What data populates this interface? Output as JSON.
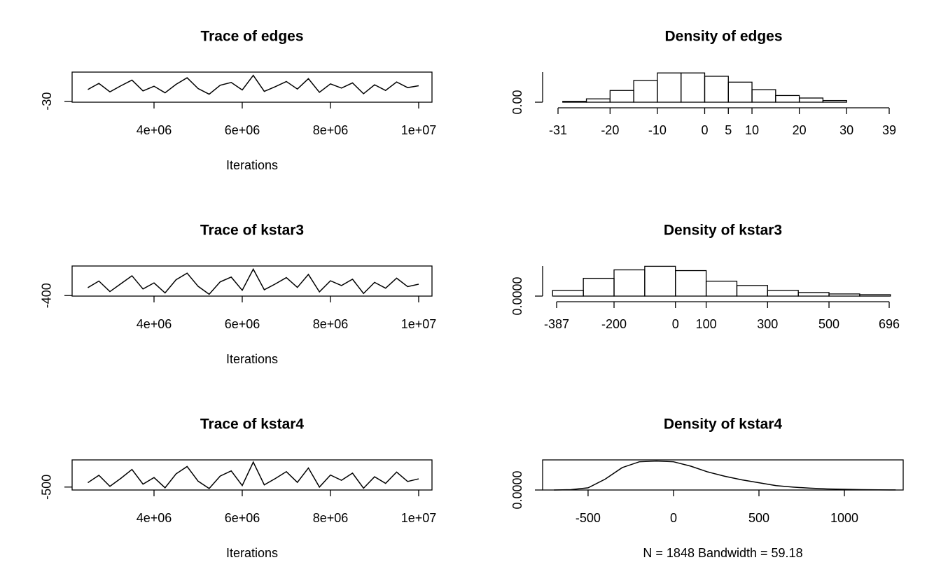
{
  "chart_data": [
    {
      "type": "line",
      "title": "Trace of edges",
      "xlabel": "Iterations",
      "x": [
        2500000,
        2750000,
        3000000,
        3250000,
        3500000,
        3750000,
        4000000,
        4250000,
        4500000,
        4750000,
        5000000,
        5250000,
        5500000,
        5750000,
        6000000,
        6250000,
        6500000,
        6750000,
        7000000,
        7250000,
        7500000,
        7750000,
        8000000,
        8250000,
        8500000,
        8750000,
        9000000,
        9250000,
        9500000,
        9750000,
        10000000
      ],
      "values": [
        -5,
        8,
        -10,
        3,
        15,
        -8,
        2,
        -12,
        6,
        20,
        -3,
        -15,
        4,
        10,
        -6,
        25,
        -9,
        1,
        12,
        -4,
        18,
        -11,
        7,
        -2,
        9,
        -14,
        5,
        -7,
        11,
        -1,
        3
      ],
      "xlim": [
        2143000,
        10302000
      ],
      "ylim": [
        -32,
        32
      ],
      "xticks": [
        {
          "value": 4000000,
          "label": "4e+06"
        },
        {
          "value": 6000000,
          "label": "6e+06"
        },
        {
          "value": 8000000,
          "label": "8e+06"
        },
        {
          "value": 10000000,
          "label": "1e+07"
        }
      ],
      "yticks": [
        -30
      ],
      "color": "#000000",
      "box": true
    },
    {
      "type": "histogram",
      "title": "Density of edges",
      "bins": [
        -30,
        -25,
        -20,
        -15,
        -10,
        -5,
        0,
        5,
        10,
        15,
        20,
        25,
        30
      ],
      "values": [
        0.001,
        0.004,
        0.014,
        0.026,
        0.035,
        0.035,
        0.031,
        0.024,
        0.015,
        0.008,
        0.005,
        0.002
      ],
      "xlim": [
        -31,
        39
      ],
      "ylim": [
        0,
        0.036
      ],
      "xticks": [
        -31,
        -20,
        -10,
        0,
        5,
        10,
        20,
        30,
        39
      ],
      "yticks": [
        {
          "value": 0,
          "label": "0.00"
        }
      ],
      "color": "#000000",
      "box": false
    },
    {
      "type": "line",
      "title": "Trace of kstar3",
      "xlabel": "Iterations",
      "x": [
        2500000,
        2750000,
        3000000,
        3250000,
        3500000,
        3750000,
        4000000,
        4250000,
        4500000,
        4750000,
        5000000,
        5250000,
        5500000,
        5750000,
        6000000,
        6250000,
        6500000,
        6750000,
        7000000,
        7250000,
        7500000,
        7750000,
        8000000,
        8250000,
        8500000,
        8750000,
        9000000,
        9250000,
        9500000,
        9750000,
        10000000
      ],
      "values": [
        -100,
        150,
        -250,
        50,
        350,
        -150,
        80,
        -300,
        200,
        450,
        -50,
        -350,
        120,
        300,
        -200,
        600,
        -180,
        40,
        280,
        -90,
        400,
        -260,
        160,
        -20,
        220,
        -320,
        100,
        -120,
        260,
        -60,
        30
      ],
      "xlim": [
        2143000,
        10302000
      ],
      "ylim": [
        -420,
        720
      ],
      "xticks": [
        {
          "value": 4000000,
          "label": "4e+06"
        },
        {
          "value": 6000000,
          "label": "6e+06"
        },
        {
          "value": 8000000,
          "label": "8e+06"
        },
        {
          "value": 10000000,
          "label": "1e+07"
        }
      ],
      "yticks": [
        -400
      ],
      "color": "#000000",
      "box": true
    },
    {
      "type": "histogram",
      "title": "Density of kstar3",
      "bins": [
        -400,
        -300,
        -200,
        -100,
        0,
        100,
        200,
        300,
        400,
        500,
        600,
        700
      ],
      "values": [
        0.0004,
        0.00124,
        0.00183,
        0.00208,
        0.00178,
        0.00104,
        0.00074,
        0.0004,
        0.00025,
        0.00015,
        0.0001
      ],
      "xlim": [
        -387,
        696
      ],
      "ylim": [
        0,
        0.0021
      ],
      "xticks": [
        -387,
        -200,
        0,
        100,
        300,
        500,
        696
      ],
      "yticks": [
        {
          "value": 0,
          "label": "0.0000"
        }
      ],
      "color": "#000000",
      "box": false
    },
    {
      "type": "line",
      "title": "Trace of kstar4",
      "xlabel": "Iterations",
      "x": [
        2500000,
        2750000,
        3000000,
        3250000,
        3500000,
        3750000,
        4000000,
        4250000,
        4500000,
        4750000,
        5000000,
        5250000,
        5500000,
        5750000,
        6000000,
        6250000,
        6500000,
        6750000,
        7000000,
        7250000,
        7500000,
        7750000,
        8000000,
        8250000,
        8500000,
        8750000,
        9000000,
        9250000,
        9500000,
        9750000,
        10000000
      ],
      "values": [
        -200,
        300,
        -450,
        100,
        700,
        -300,
        150,
        -550,
        400,
        900,
        -100,
        -600,
        250,
        600,
        -400,
        1200,
        -350,
        80,
        550,
        -180,
        800,
        -500,
        320,
        -40,
        450,
        -580,
        200,
        -250,
        520,
        -120,
        60
      ],
      "xlim": [
        2143000,
        10302000
      ],
      "ylim": [
        -700,
        1350
      ],
      "xticks": [
        {
          "value": 4000000,
          "label": "4e+06"
        },
        {
          "value": 6000000,
          "label": "6e+06"
        },
        {
          "value": 8000000,
          "label": "8e+06"
        },
        {
          "value": 10000000,
          "label": "1e+07"
        }
      ],
      "yticks": [
        -500
      ],
      "color": "#000000",
      "box": true
    },
    {
      "type": "line",
      "title": "Density of kstar4",
      "xlabel": "N = 1848   Bandwidth = 59.18",
      "x": [
        -700,
        -600,
        -500,
        -400,
        -300,
        -200,
        -100,
        0,
        100,
        200,
        300,
        400,
        500,
        600,
        700,
        800,
        900,
        1000,
        1100,
        1200,
        1300
      ],
      "values": [
        0,
        2.5e-05,
        0.00015,
        0.00075,
        0.00155,
        0.00195,
        0.002,
        0.00195,
        0.00165,
        0.00125,
        0.00095,
        0.0007,
        0.0005,
        0.0003,
        0.0002,
        0.000125,
        7.5e-05,
        5e-05,
        2.5e-05,
        1.5e-05,
        5e-06
      ],
      "xlim": [
        -766,
        1344
      ],
      "ylim": [
        0,
        0.00208
      ],
      "xticks": [
        -500,
        0,
        500,
        1000
      ],
      "yticks": [
        {
          "value": 0,
          "label": "0.0000"
        }
      ],
      "color": "#000000",
      "box": true
    }
  ]
}
